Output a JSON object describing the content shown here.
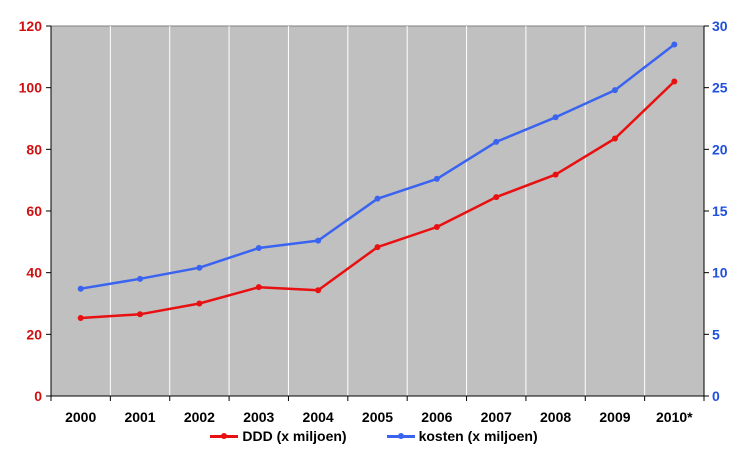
{
  "chart_data": {
    "type": "line",
    "categories": [
      "2000",
      "2001",
      "2002",
      "2003",
      "2004",
      "2005",
      "2006",
      "2007",
      "2008",
      "2009",
      "2010*"
    ],
    "series": [
      {
        "name": "DDD (x miljoen)",
        "axis": "left",
        "color": "#e81010",
        "values": [
          25.3,
          26.5,
          30.0,
          35.3,
          34.3,
          48.3,
          54.8,
          64.5,
          71.8,
          83.5,
          102.0
        ]
      },
      {
        "name": "kosten (x miljoen)",
        "axis": "right",
        "color": "#3a64f0",
        "values": [
          8.7,
          9.5,
          10.4,
          12.0,
          12.6,
          16.0,
          17.6,
          20.6,
          22.6,
          24.8,
          28.5
        ]
      }
    ],
    "y_left": {
      "lim": [
        0,
        120
      ],
      "ticks": [
        "0",
        "20",
        "40",
        "60",
        "80",
        "100",
        "120"
      ],
      "color": "#d01010"
    },
    "y_right": {
      "lim": [
        0,
        30
      ],
      "ticks": [
        "0",
        "5",
        "10",
        "15",
        "20",
        "25",
        "30"
      ],
      "color": "#2050e0"
    },
    "plot_background": "#c0c0c0",
    "grid": "vertical",
    "legend_position": "bottom"
  }
}
